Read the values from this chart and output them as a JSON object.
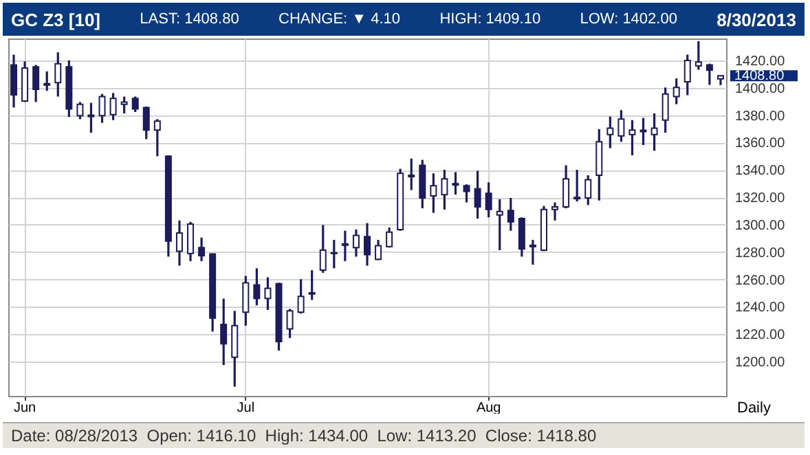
{
  "chart_data": {
    "type": "candlestick",
    "title": "GC Z3 [10]",
    "subtitle": "8/30/2013",
    "categories": [
      null,
      "Jun",
      null,
      null,
      null,
      null,
      null,
      null,
      null,
      null,
      null,
      null,
      null,
      null,
      null,
      null,
      null,
      null,
      null,
      null,
      null,
      "Jul",
      null,
      null,
      null,
      null,
      null,
      null,
      null,
      null,
      null,
      null,
      null,
      null,
      null,
      null,
      null,
      null,
      null,
      null,
      null,
      null,
      null,
      "Aug",
      null,
      null,
      null,
      null,
      null,
      null,
      null,
      null,
      null,
      null,
      null,
      null,
      null,
      null,
      null,
      null,
      null,
      null,
      null,
      null,
      null
    ],
    "ohlc": [
      [
        1416.7,
        1424.2,
        1385.6,
        1394.9
      ],
      [
        1390.3,
        1419.3,
        1389.6,
        1414.4
      ],
      [
        1415.3,
        1416.7,
        1389.6,
        1398.8
      ],
      [
        1403,
        1412,
        1397.8,
        1402
      ],
      [
        1403.8,
        1425.9,
        1393.6,
        1417.6
      ],
      [
        1415.3,
        1420,
        1378.7,
        1384.6
      ],
      [
        1379.7,
        1389.6,
        1377.1,
        1388
      ],
      [
        1380,
        1389,
        1367.2,
        1379
      ],
      [
        1379.7,
        1395.5,
        1374.4,
        1393.6
      ],
      [
        1380.4,
        1396.2,
        1376.4,
        1392.2
      ],
      [
        1388,
        1393.6,
        1381.3,
        1389.6
      ],
      [
        1392.2,
        1393.6,
        1382.3,
        1384.6
      ],
      [
        1385.6,
        1386.3,
        1362.5,
        1369.1
      ],
      [
        1369.1,
        1377.1,
        1350,
        1375.7
      ],
      [
        1350,
        1350.7,
        1276.7,
        1288
      ],
      [
        1280.7,
        1303.1,
        1270.1,
        1293.9
      ],
      [
        1279,
        1302.1,
        1273.4,
        1300.5
      ],
      [
        1283.3,
        1290.6,
        1273.4,
        1277.4
      ],
      [
        1278.7,
        1279,
        1222,
        1231.9
      ],
      [
        1227.2,
        1246,
        1197.5,
        1213
      ],
      [
        1203.2,
        1237.1,
        1181.7,
        1226.3
      ],
      [
        1236.1,
        1262.6,
        1226.3,
        1257.6
      ],
      [
        1256,
        1268.2,
        1241.1,
        1246.1
      ],
      [
        1246.1,
        1261.6,
        1237.8,
        1253.6
      ],
      [
        1256.9,
        1257.6,
        1208.1,
        1214.7
      ],
      [
        1223.9,
        1238.5,
        1217.3,
        1237.1
      ],
      [
        1236.1,
        1260.2,
        1235.2,
        1247.7
      ],
      [
        1250.3,
        1266.8,
        1245.1,
        1249.4
      ],
      [
        1266.8,
        1299.8,
        1264.9,
        1281.4
      ],
      [
        1279.5,
        1288.9,
        1268.2,
        1279
      ],
      [
        1286,
        1295.6,
        1273.4,
        1285
      ],
      [
        1283.3,
        1296.5,
        1276.7,
        1292.2
      ],
      [
        1291.3,
        1301.2,
        1270.1,
        1278.1
      ],
      [
        1274.8,
        1288.9,
        1274.1,
        1284.7
      ],
      [
        1284,
        1297.9,
        1283.3,
        1294.6
      ],
      [
        1296.5,
        1340.8,
        1295.6,
        1337.5
      ],
      [
        1336.1,
        1348.3,
        1325.3,
        1335.1
      ],
      [
        1343.4,
        1347.4,
        1312,
        1319.6
      ],
      [
        1321,
        1337.5,
        1308.7,
        1328.5
      ],
      [
        1322,
        1340.1,
        1311.1,
        1333.5
      ],
      [
        1330,
        1338.4,
        1322,
        1329
      ],
      [
        1328.5,
        1329.5,
        1316.3,
        1324.3
      ],
      [
        1326.2,
        1339.4,
        1304.5,
        1313
      ],
      [
        1322.9,
        1330.9,
        1305.4,
        1311.1
      ],
      [
        1307.1,
        1318.6,
        1281.4,
        1309.7
      ],
      [
        1310.4,
        1319.6,
        1295.6,
        1302.1
      ],
      [
        1304.5,
        1305.4,
        1276.7,
        1282.3
      ],
      [
        1285,
        1288.9,
        1270.8,
        1284
      ],
      [
        1281.4,
        1313.7,
        1280.7,
        1311.1
      ],
      [
        1311.1,
        1316.3,
        1303.1,
        1313
      ],
      [
        1313,
        1343.4,
        1312,
        1333.5
      ],
      [
        1320,
        1340.1,
        1317,
        1319
      ],
      [
        1319.6,
        1336.1,
        1314.4,
        1332.8
      ],
      [
        1336.1,
        1369.8,
        1317.7,
        1360.6
      ],
      [
        1365.8,
        1379,
        1355.9,
        1370.5
      ],
      [
        1364.8,
        1383.7,
        1360.6,
        1377.1
      ],
      [
        1365.8,
        1376.4,
        1350.7,
        1369.1
      ],
      [
        1369,
        1378,
        1358.2,
        1368
      ],
      [
        1365.8,
        1381.3,
        1354,
        1370.5
      ],
      [
        1376.4,
        1400.2,
        1367.2,
        1395.5
      ],
      [
        1393.6,
        1406.8,
        1388,
        1400.2
      ],
      [
        1404.4,
        1424.2,
        1394.6,
        1420
      ],
      [
        1416.1,
        1434,
        1413.2,
        1418.8
      ],
      [
        1416.7,
        1417.6,
        1402.1,
        1412.9
      ],
      [
        1406.5,
        1409.1,
        1402,
        1408.8
      ]
    ],
    "color": "#1c1c5c",
    "ylim": [
      1175,
      1436
    ],
    "yticks": [
      {
        "value": 1200,
        "label": "1200.00"
      },
      {
        "value": 1220,
        "label": "1220.00"
      },
      {
        "value": 1240,
        "label": "1240.00"
      },
      {
        "value": 1260,
        "label": "1260.00"
      },
      {
        "value": 1280,
        "label": "1280.00"
      },
      {
        "value": 1300,
        "label": "1300.00"
      },
      {
        "value": 1320,
        "label": "1320.00"
      },
      {
        "value": 1340,
        "label": "1340.00"
      },
      {
        "value": 1360,
        "label": "1360.00"
      },
      {
        "value": 1380,
        "label": "1380.00"
      },
      {
        "value": 1400,
        "label": "1400.00"
      },
      {
        "value": 1420,
        "label": "1420.00"
      }
    ],
    "grid": true,
    "annotations": [
      "LAST: 1408.80",
      "CHANGE: ▼ 4.10",
      "HIGH: 1409.10",
      "LOW: 1402.00",
      "Daily",
      "Date: 08/28/2013  Open: 1416.10  High: 1434.00  Low: 1413.20  Close: 1418.80",
      "1408.80"
    ]
  }
}
